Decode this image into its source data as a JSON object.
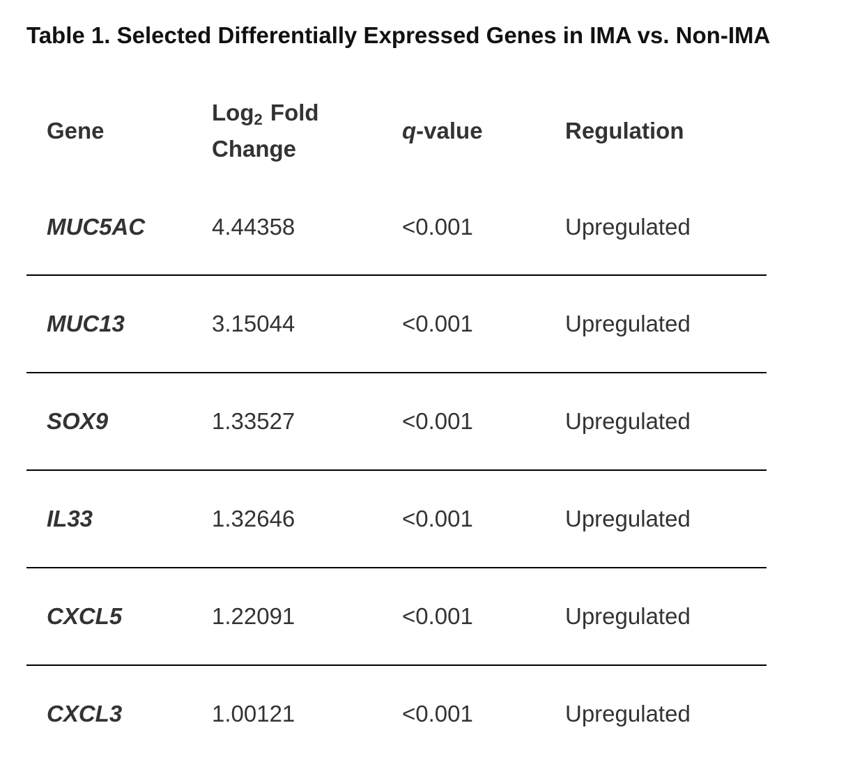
{
  "caption": "Table 1. Selected Differentially Expressed Genes in IMA vs. Non-IMA",
  "headers": {
    "gene": "Gene",
    "fold_change_prefix": "Log",
    "fold_change_subscript": "2",
    "fold_change_suffix": "Fold",
    "fold_change_line2": "Change",
    "q_italic": "q",
    "q_rest": "-value",
    "regulation": "Regulation"
  },
  "rows": [
    {
      "gene": "MUC5AC",
      "log2fc": "4.44358",
      "q": "<0.001",
      "regulation": "Upregulated"
    },
    {
      "gene": "MUC13",
      "log2fc": "3.15044",
      "q": "<0.001",
      "regulation": "Upregulated"
    },
    {
      "gene": "SOX9",
      "log2fc": "1.33527",
      "q": "<0.001",
      "regulation": "Upregulated"
    },
    {
      "gene": "IL33",
      "log2fc": "1.32646",
      "q": "<0.001",
      "regulation": "Upregulated"
    },
    {
      "gene": "CXCL5",
      "log2fc": "1.22091",
      "q": "<0.001",
      "regulation": "Upregulated"
    },
    {
      "gene": "CXCL3",
      "log2fc": "1.00121",
      "q": "<0.001",
      "regulation": "Upregulated"
    }
  ]
}
